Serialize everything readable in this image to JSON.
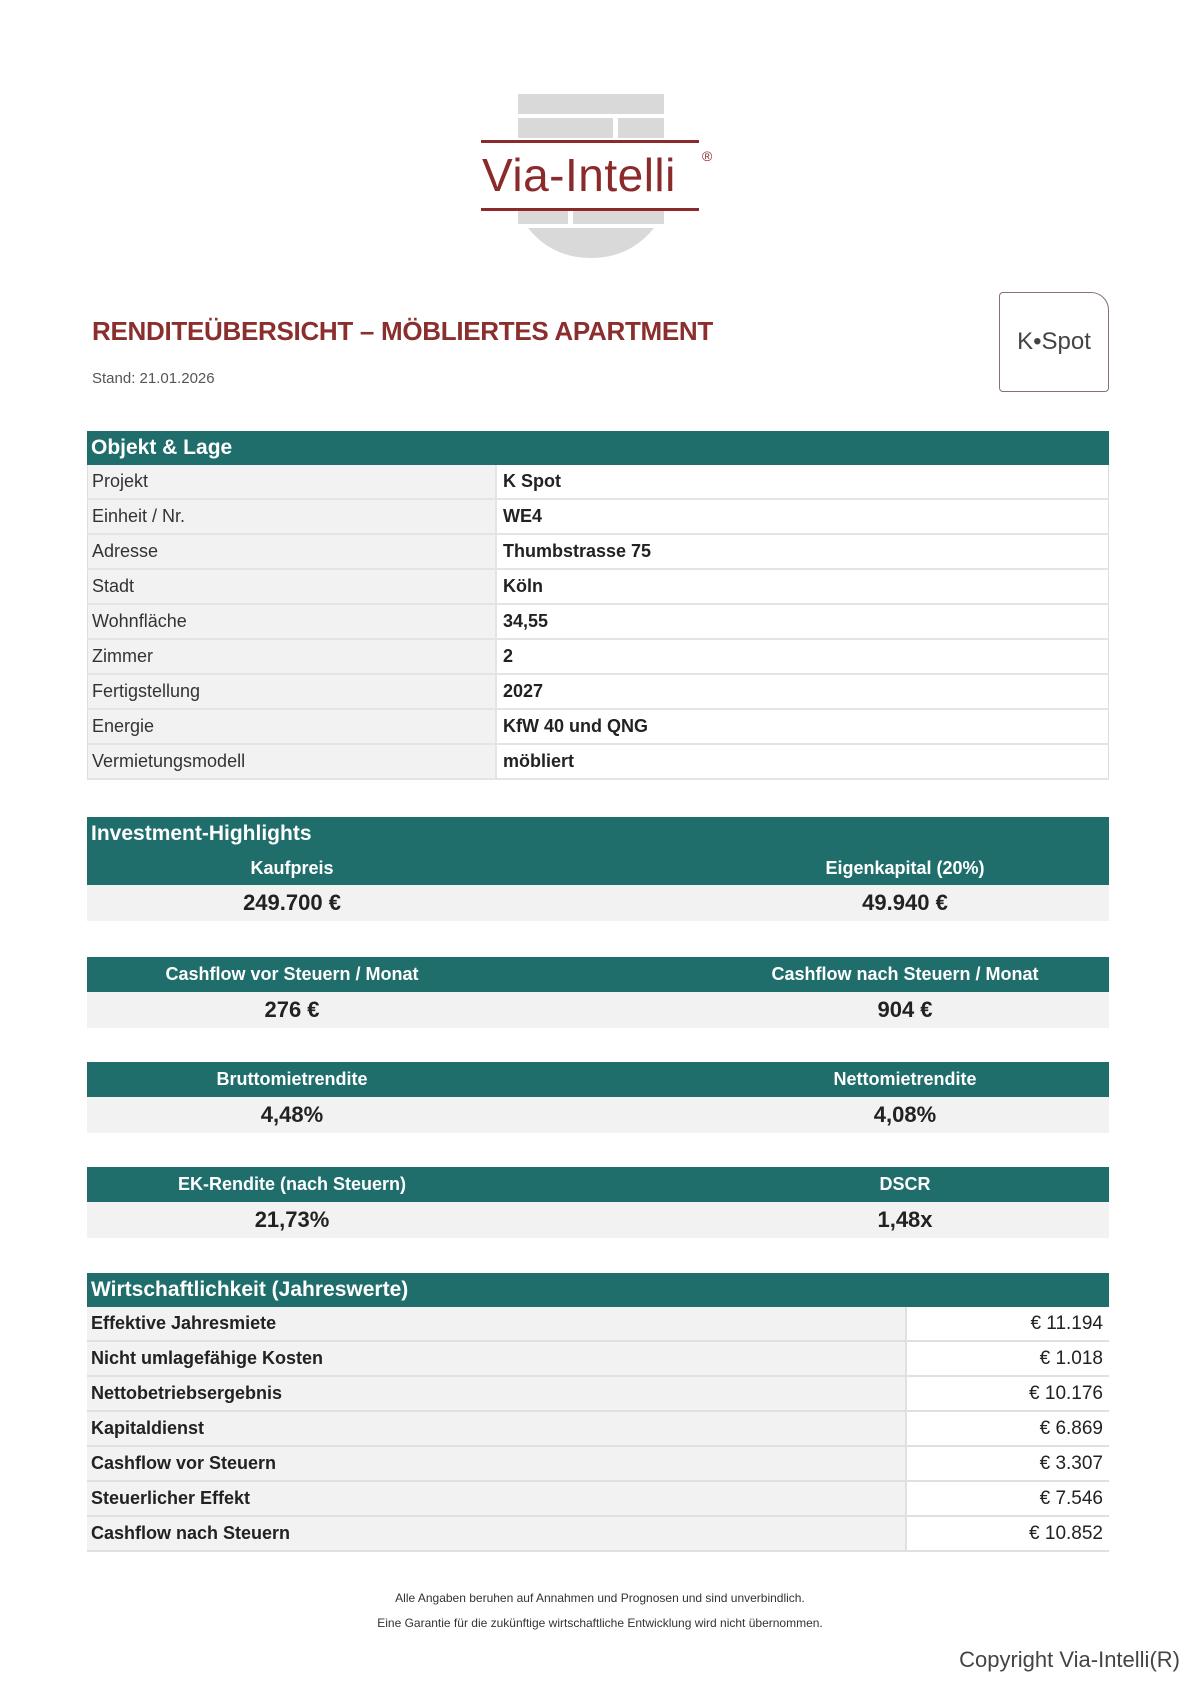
{
  "logo": {
    "brand": "Via-Intelli",
    "reg": "®"
  },
  "header": {
    "title": "RENDITEÜBERSICHT – MÖBLIERTES APARTMENT",
    "stand": "Stand: 21.01.2026",
    "project_logo": "K•Spot"
  },
  "colors": {
    "accent": "#1f6e6c",
    "title": "#8b2e2e"
  },
  "objekt": {
    "title": "Objekt & Lage",
    "rows": [
      {
        "k": "Projekt",
        "v": "K Spot"
      },
      {
        "k": "Einheit / Nr.",
        "v": "WE4"
      },
      {
        "k": "Adresse",
        "v": "Thumbstrasse 75"
      },
      {
        "k": "Stadt",
        "v": "Köln"
      },
      {
        "k": "Wohnfläche",
        "v": "34,55"
      },
      {
        "k": "Zimmer",
        "v": "2"
      },
      {
        "k": "Fertigstellung",
        "v": "2027"
      },
      {
        "k": "Energie",
        "v": "KfW 40 und QNG"
      },
      {
        "k": "Vermietungsmodell",
        "v": "möbliert"
      }
    ]
  },
  "highlights": {
    "title": "Investment-Highlights",
    "blocks": [
      {
        "l1": "Kaufpreis",
        "v1": "249.700 €",
        "l2": "Eigenkapital (20%)",
        "v2": "49.940 €"
      },
      {
        "l1": "Cashflow vor Steuern / Monat",
        "v1": "276 €",
        "l2": "Cashflow nach Steuern / Monat",
        "v2": "904 €"
      },
      {
        "l1": "Bruttomietrendite",
        "v1": "4,48%",
        "l2": "Nettomietrendite",
        "v2": "4,08%"
      },
      {
        "l1": "EK-Rendite (nach Steuern)",
        "v1": "21,73%",
        "l2": "DSCR",
        "v2": "1,48x"
      }
    ]
  },
  "wirtschaft": {
    "title": "Wirtschaftlichkeit (Jahreswerte)",
    "rows": [
      {
        "k": "Effektive Jahresmiete",
        "v": "€ 11.194"
      },
      {
        "k": "Nicht umlagefähige Kosten",
        "v": "€ 1.018"
      },
      {
        "k": "Nettobetriebsergebnis",
        "v": "€ 10.176"
      },
      {
        "k": "Kapitaldienst",
        "v": "€ 6.869"
      },
      {
        "k": "Cashflow vor Steuern",
        "v": "€ 3.307"
      },
      {
        "k": "Steuerlicher Effekt",
        "v": "€ 7.546"
      },
      {
        "k": "Cashflow nach Steuern",
        "v": "€ 10.852"
      }
    ]
  },
  "footer": {
    "line1": "Alle Angaben beruhen auf Annahmen und Prognosen und sind unverbindlich.",
    "line2": "Eine Garantie für die zukünftige wirtschaftliche Entwicklung wird nicht übernommen.",
    "copyright": "Copyright Via-Intelli(R)"
  }
}
